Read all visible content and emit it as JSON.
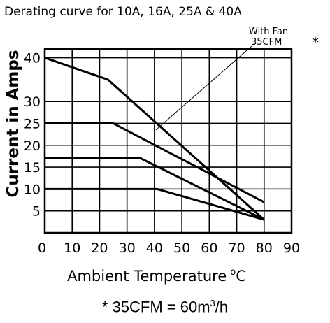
{
  "chart_data": {
    "type": "line",
    "title": "Derating curve for 10A, 16A, 25A & 40A",
    "xlabel": "Ambient Temperature",
    "xlabel_unit_sup": "o",
    "xlabel_unit": "C",
    "ylabel": "Current in Amps",
    "xlim": [
      0,
      90
    ],
    "ylim": [
      0,
      42
    ],
    "xticks": [
      0,
      10,
      20,
      30,
      40,
      50,
      60,
      70,
      80,
      90
    ],
    "yticks": [
      5,
      10,
      15,
      20,
      25,
      30,
      40
    ],
    "grid": true,
    "series": [
      {
        "x": [
          0,
          23,
          80
        ],
        "y": [
          40,
          35,
          3
        ]
      },
      {
        "x": [
          0,
          25,
          80
        ],
        "y": [
          25,
          25,
          7
        ]
      },
      {
        "x": [
          0,
          35,
          80
        ],
        "y": [
          17,
          17,
          3
        ]
      },
      {
        "x": [
          0,
          41,
          80
        ],
        "y": [
          10,
          10,
          3
        ]
      }
    ],
    "annotation": {
      "lines": [
        "With Fan",
        "35CFM"
      ],
      "target": {
        "x": 39,
        "y": 24
      },
      "marker": "*"
    }
  },
  "footnote": {
    "prefix": "* 35CFM = 60m",
    "sup": "3",
    "suffix": "/h"
  }
}
